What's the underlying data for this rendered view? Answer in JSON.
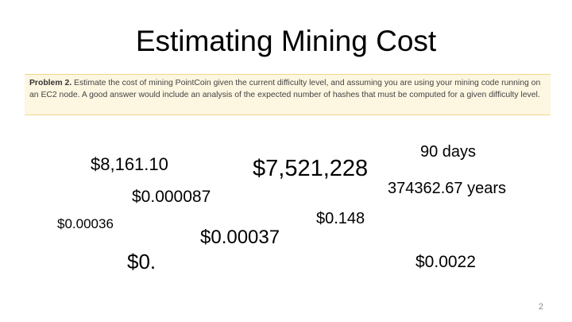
{
  "slide": {
    "title": "Estimating Mining Cost",
    "problem": {
      "label": "Problem 2.",
      "text": " Estimate the cost of mining PointCoin given the current difficulty level, and assuming you are using your mining code running on an EC2 node. A good answer would include an analysis of the expected number of hashes that must be computed for a given difficulty level."
    },
    "values": {
      "v1": "$8,161.10",
      "v2": "$7,521,228",
      "v3": "90 days",
      "v4": "374362.67 years",
      "v5": "$0.000087",
      "v6": "$0.00036",
      "v7": "$0.00037",
      "v8": "$0.148",
      "v9": "$0.",
      "v10": "$0.0022"
    },
    "page_number": "2",
    "colors": {
      "box_background": "#fdf6e0",
      "box_border": "#f0d98a"
    }
  }
}
